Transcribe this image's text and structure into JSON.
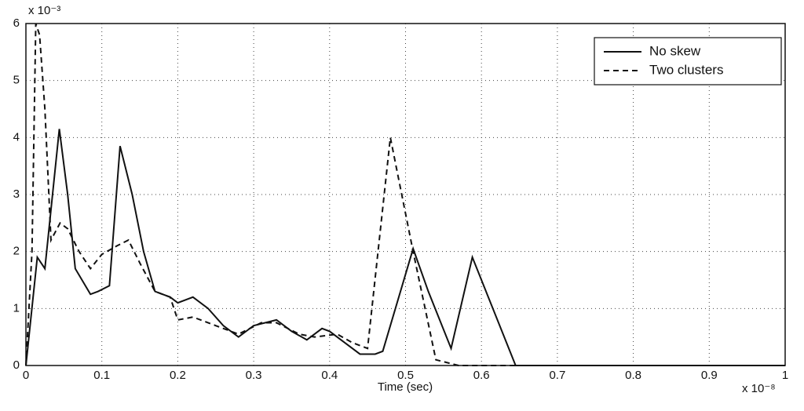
{
  "chart_data": {
    "type": "line",
    "x_label": "Time (sec)",
    "x_exponent": "x 10⁻⁸",
    "y_exponent": "x 10⁻³",
    "xlim": [
      0,
      1
    ],
    "ylim": [
      0,
      6
    ],
    "xticks": [
      0,
      0.1,
      0.2,
      0.3,
      0.4,
      0.5,
      0.6,
      0.7,
      0.8,
      0.9,
      1
    ],
    "yticks": [
      0,
      1,
      2,
      3,
      4,
      5,
      6
    ],
    "grid": true,
    "legend": "upper right",
    "series": [
      {
        "name": "No skew",
        "color": "#111111",
        "dash": false,
        "x": [
          0,
          0.015,
          0.025,
          0.044,
          0.055,
          0.065,
          0.085,
          0.095,
          0.11,
          0.124,
          0.14,
          0.155,
          0.17,
          0.19,
          0.2,
          0.22,
          0.24,
          0.26,
          0.28,
          0.3,
          0.33,
          0.35,
          0.37,
          0.39,
          0.4,
          0.42,
          0.44,
          0.46,
          0.47,
          0.51,
          0.53,
          0.56,
          0.588,
          0.645,
          1.0
        ],
        "values": [
          0,
          1.9,
          1.7,
          4.15,
          3.0,
          1.7,
          1.25,
          1.3,
          1.4,
          3.85,
          3.0,
          2.0,
          1.3,
          1.2,
          1.1,
          1.2,
          1.0,
          0.7,
          0.5,
          0.7,
          0.8,
          0.6,
          0.45,
          0.65,
          0.6,
          0.4,
          0.2,
          0.2,
          0.25,
          2.05,
          1.3,
          0.3,
          1.9,
          0,
          0
        ]
      },
      {
        "name": "Two clusters",
        "color": "#111111",
        "dash": true,
        "x": [
          0,
          0.008,
          0.013,
          0.018,
          0.025,
          0.033,
          0.045,
          0.055,
          0.07,
          0.085,
          0.1,
          0.12,
          0.135,
          0.15,
          0.17,
          0.19,
          0.2,
          0.22,
          0.25,
          0.28,
          0.31,
          0.33,
          0.36,
          0.38,
          0.41,
          0.43,
          0.45,
          0.48,
          0.51,
          0.54,
          0.57,
          1.0
        ],
        "values": [
          0,
          2,
          6,
          5.8,
          4.5,
          2.2,
          2.5,
          2.4,
          2.0,
          1.7,
          1.95,
          2.1,
          2.2,
          1.8,
          1.3,
          1.2,
          0.8,
          0.85,
          0.7,
          0.55,
          0.75,
          0.75,
          0.55,
          0.5,
          0.55,
          0.4,
          0.3,
          4.0,
          2.0,
          0.1,
          0,
          0
        ]
      }
    ]
  }
}
